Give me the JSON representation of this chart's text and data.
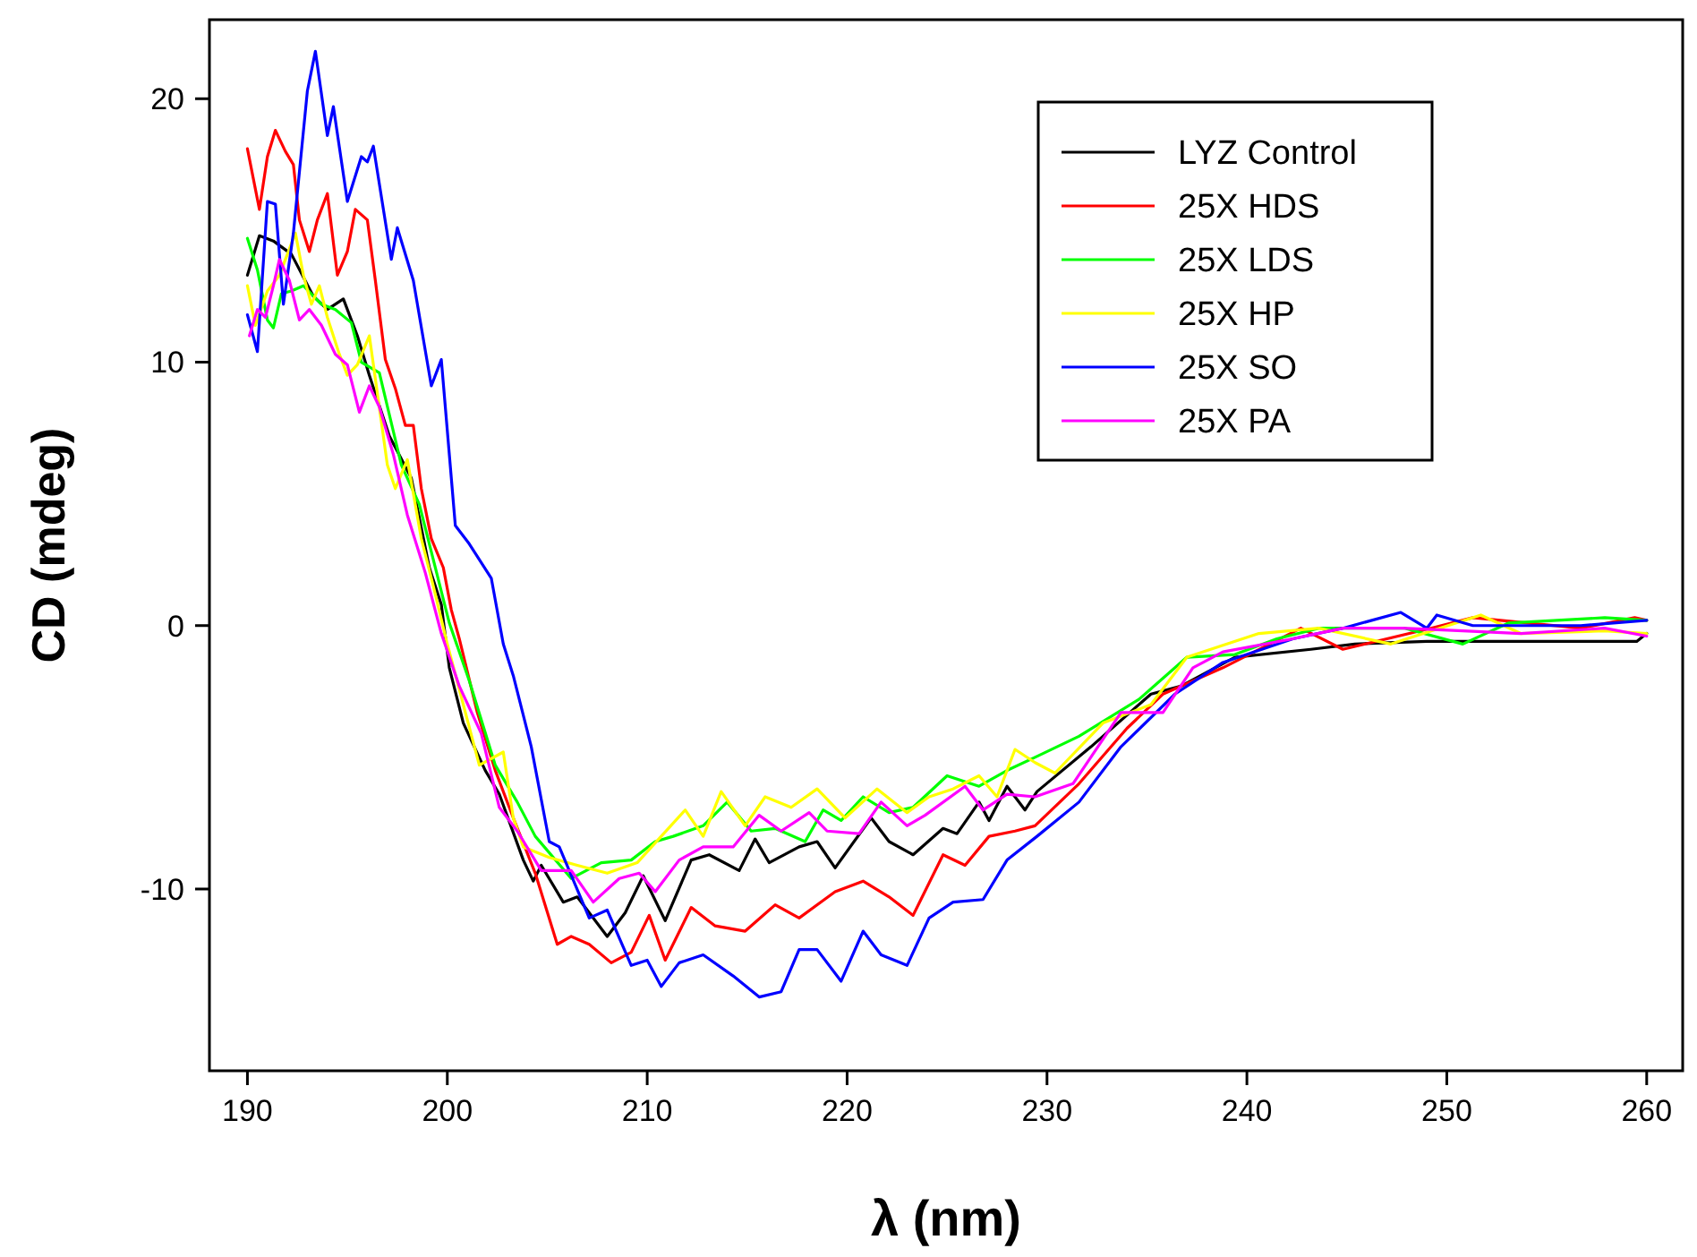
{
  "chart_data": {
    "type": "line",
    "xlabel": "λ (nm)",
    "ylabel": "CD (mdeg)",
    "xlim": [
      188.1,
      261.8
    ],
    "ylim": [
      -16.9,
      23
    ],
    "xticks": [
      190,
      200,
      210,
      220,
      230,
      240,
      250,
      260
    ],
    "yticks": [
      -10,
      0,
      10,
      20
    ],
    "legend": "top right",
    "grid": false,
    "line_style": "solid",
    "marker": "none",
    "series": [
      {
        "name": "LYZ Control",
        "color": "#000000",
        "x": [
          190,
          190.6,
          191.3,
          192.2,
          193.3,
          194,
          194.8,
          195.5,
          196.1,
          197.1,
          198.2,
          199.1,
          199.7,
          200.1,
          200.8,
          201.9,
          202.6,
          203.8,
          204.3,
          204.7,
          205.8,
          206.5,
          208,
          208.9,
          209.8,
          210.9,
          212.2,
          213.1,
          214.6,
          215.4,
          216.1,
          217.6,
          218.5,
          219.4,
          221.2,
          222.1,
          223.3,
          224.8,
          225.5,
          226.6,
          227.1,
          228,
          228.9,
          229.5,
          232.2,
          235.2,
          236.7,
          239.4,
          243.2,
          245.4,
          249,
          252.6,
          255.5,
          259.5,
          260
        ],
        "values": [
          13.3,
          14.8,
          14.6,
          14.1,
          12.5,
          12,
          12.4,
          11,
          9.5,
          7.2,
          5.6,
          2.2,
          0.8,
          -1.6,
          -3.7,
          -5.5,
          -6.4,
          -8.9,
          -9.7,
          -9.1,
          -10.5,
          -10.3,
          -11.8,
          -10.9,
          -9.5,
          -11.2,
          -8.9,
          -8.7,
          -9.3,
          -8.1,
          -9,
          -8.4,
          -8.2,
          -9.2,
          -7.3,
          -8.2,
          -8.7,
          -7.7,
          -7.9,
          -6.7,
          -7.4,
          -6.1,
          -7,
          -6.3,
          -4.6,
          -2.6,
          -2.3,
          -1.2,
          -0.9,
          -0.7,
          -0.6,
          -0.6,
          -0.6,
          -0.6,
          -0.3
        ]
      },
      {
        "name": "25X HDS",
        "color": "#ff0000",
        "x": [
          190,
          190.6,
          191,
          191.4,
          191.9,
          192.3,
          192.6,
          193.1,
          193.5,
          194,
          194.5,
          195,
          195.4,
          196,
          196.4,
          196.9,
          197.4,
          197.9,
          198.3,
          198.7,
          199.2,
          199.8,
          200.2,
          200.6,
          201.5,
          202.4,
          203.3,
          204.4,
          205.5,
          206.2,
          207.1,
          208.2,
          209.2,
          210.1,
          210.9,
          212.2,
          213.4,
          214.9,
          216.4,
          217.6,
          219.4,
          220.8,
          222.1,
          223.3,
          224.8,
          225.9,
          227.1,
          228.4,
          229.4,
          231.6,
          234,
          235.8,
          238.8,
          242.7,
          244.8,
          249.2,
          251.3,
          256.7,
          259.4,
          260
        ],
        "values": [
          18.1,
          15.8,
          17.8,
          18.8,
          18,
          17.5,
          15.4,
          14.2,
          15.4,
          16.4,
          13.3,
          14.2,
          15.8,
          15.4,
          13.1,
          10.1,
          9,
          7.6,
          7.6,
          5.2,
          3.3,
          2.2,
          0.6,
          -0.5,
          -3.3,
          -5.5,
          -7.3,
          -9.4,
          -12.1,
          -11.8,
          -12.1,
          -12.8,
          -12.4,
          -11,
          -12.7,
          -10.7,
          -11.4,
          -11.6,
          -10.6,
          -11.1,
          -10.1,
          -9.7,
          -10.3,
          -11,
          -8.7,
          -9.1,
          -8,
          -7.8,
          -7.6,
          -6,
          -3.9,
          -2.6,
          -1.6,
          -0.1,
          -0.9,
          -0.1,
          0.3,
          -0.1,
          0.3,
          0.2
        ]
      },
      {
        "name": "25X LDS",
        "color": "#00ff00",
        "x": [
          190,
          190.5,
          191,
          191.3,
          191.7,
          192.2,
          192.8,
          193.7,
          194.4,
          195.2,
          195.7,
          196.6,
          197.7,
          198.6,
          199.3,
          200.1,
          201.1,
          202.4,
          203.5,
          204.4,
          206.2,
          207.7,
          209.2,
          210.4,
          211.3,
          212.8,
          214,
          215.2,
          216.4,
          217.9,
          218.8,
          219.7,
          220.8,
          222.1,
          223.3,
          225,
          226.6,
          228,
          229.4,
          231.6,
          234.6,
          237,
          239.4,
          241.5,
          243.6,
          247.9,
          250.8,
          253.1,
          257.9,
          260
        ],
        "values": [
          14.7,
          13.5,
          11.6,
          11.3,
          12.6,
          12.7,
          12.9,
          12.2,
          12,
          11.5,
          10,
          9.6,
          6.1,
          4.6,
          2.5,
          0.1,
          -2.1,
          -5.3,
          -6.7,
          -8,
          -9.6,
          -9,
          -8.9,
          -8.2,
          -8,
          -7.6,
          -6.7,
          -7.8,
          -7.7,
          -8.2,
          -7,
          -7.4,
          -6.5,
          -7.1,
          -6.9,
          -5.7,
          -6.1,
          -5.5,
          -5,
          -4.2,
          -2.8,
          -1.2,
          -1.1,
          -0.5,
          -0.1,
          -0.1,
          -0.7,
          0.1,
          0.3,
          0.2
        ]
      },
      {
        "name": "25X HP",
        "color": "#ffff00",
        "x": [
          190,
          190.4,
          191,
          191.6,
          192.4,
          192.8,
          193.2,
          193.6,
          194,
          194.6,
          195,
          195.5,
          196.1,
          197,
          197.4,
          198,
          198.7,
          199.3,
          200,
          201.6,
          202.8,
          203.3,
          203.8,
          205.1,
          206.5,
          208,
          209.5,
          210.7,
          211.9,
          212.8,
          213.7,
          214.9,
          215.9,
          217.2,
          218.5,
          219.9,
          221.5,
          223,
          224.1,
          225.3,
          226.6,
          227.5,
          228.4,
          229.4,
          230.4,
          232.8,
          235.2,
          237,
          240.6,
          243.6,
          247.2,
          251.7,
          253.7,
          257.9,
          260
        ],
        "values": [
          12.9,
          11.4,
          12.7,
          13.3,
          14.9,
          13.3,
          12.2,
          12.9,
          11.7,
          10.3,
          9.5,
          9.9,
          11,
          6.1,
          5.2,
          6.3,
          3.3,
          1.5,
          -0.7,
          -5.3,
          -4.8,
          -7.3,
          -8.4,
          -8.8,
          -9.1,
          -9.4,
          -9,
          -8,
          -7,
          -8,
          -6.3,
          -7.6,
          -6.5,
          -6.9,
          -6.2,
          -7.3,
          -6.2,
          -7.1,
          -6.5,
          -6.2,
          -5.7,
          -6.5,
          -4.7,
          -5.2,
          -5.6,
          -3.7,
          -3,
          -1.2,
          -0.3,
          -0.1,
          -0.7,
          0.4,
          -0.3,
          -0.2,
          -0.3
        ]
      },
      {
        "name": "25X SO",
        "color": "#0000ff",
        "x": [
          190,
          190.5,
          191,
          191.4,
          191.8,
          192.3,
          193,
          193.4,
          194,
          194.3,
          195,
          195.7,
          196,
          196.3,
          197.2,
          197.5,
          198.3,
          199.2,
          199.7,
          200.4,
          201.1,
          202.2,
          202.8,
          203.3,
          204.2,
          205.1,
          205.6,
          207.1,
          208,
          209.2,
          210,
          210.7,
          211.6,
          212.8,
          214.3,
          215.6,
          216.7,
          217.6,
          218.5,
          219.7,
          220.8,
          221.7,
          223,
          224.1,
          225.3,
          226.8,
          228,
          229.5,
          231.6,
          233.7,
          236.4,
          238.8,
          242.3,
          244.8,
          247.7,
          249,
          249.5,
          251.3,
          254,
          256.7,
          260
        ],
        "values": [
          11.8,
          10.4,
          16.1,
          16,
          12.2,
          14.9,
          20.3,
          21.8,
          18.6,
          19.7,
          16.1,
          17.8,
          17.6,
          18.2,
          13.9,
          15.1,
          13.1,
          9.1,
          10.1,
          3.8,
          3.1,
          1.8,
          -0.7,
          -1.9,
          -4.6,
          -8.2,
          -8.4,
          -11.1,
          -10.8,
          -12.9,
          -12.7,
          -13.7,
          -12.8,
          -12.5,
          -13.3,
          -14.1,
          -13.9,
          -12.3,
          -12.3,
          -13.5,
          -11.6,
          -12.5,
          -12.9,
          -11.1,
          -10.5,
          -10.4,
          -8.9,
          -8,
          -6.7,
          -4.6,
          -2.6,
          -1.4,
          -0.5,
          -0.1,
          0.5,
          -0.1,
          0.4,
          0,
          0,
          0,
          0.2
        ]
      },
      {
        "name": "25X PA",
        "color": "#ff00ff",
        "x": [
          190.1,
          190.5,
          190.9,
          191.3,
          191.6,
          192.1,
          192.6,
          193.1,
          193.7,
          194.4,
          195,
          195.6,
          196.1,
          196.6,
          197.3,
          198,
          198.9,
          199.7,
          200.6,
          201.7,
          202.6,
          203.5,
          204.7,
          206.2,
          207.3,
          208.6,
          209.6,
          210.4,
          211.6,
          212.8,
          214.3,
          215.6,
          216.7,
          218.1,
          219,
          220.6,
          221.7,
          223,
          223.9,
          225.9,
          226.8,
          228,
          229.4,
          231.3,
          233.7,
          235.8,
          237.3,
          238.8,
          242.3,
          244.8,
          247.8,
          250.8,
          253.7,
          257.9,
          260
        ],
        "values": [
          11,
          12,
          11.7,
          12.9,
          13.9,
          13.1,
          11.6,
          12,
          11.4,
          10.3,
          9.9,
          8.1,
          9.1,
          8.3,
          6.5,
          4.2,
          2,
          -0.3,
          -2.3,
          -4.1,
          -6.9,
          -7.8,
          -9.3,
          -9.3,
          -10.5,
          -9.6,
          -9.4,
          -10.1,
          -8.9,
          -8.4,
          -8.4,
          -7.2,
          -7.8,
          -7.1,
          -7.8,
          -7.9,
          -6.7,
          -7.6,
          -7.2,
          -6.1,
          -7,
          -6.4,
          -6.5,
          -6,
          -3.3,
          -3.3,
          -1.6,
          -1,
          -0.5,
          -0.1,
          -0.1,
          -0.2,
          -0.3,
          -0.1,
          -0.4
        ]
      }
    ]
  }
}
